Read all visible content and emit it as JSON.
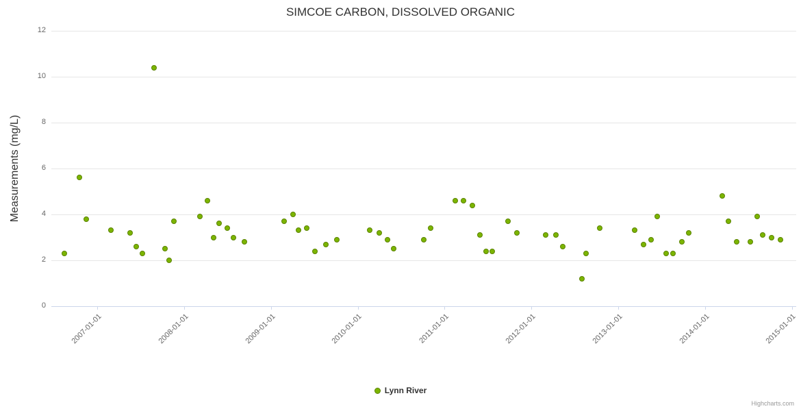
{
  "chart_data": {
    "type": "scatter",
    "title": "SIMCOE CARBON, DISSOLVED ORGANIC",
    "xlabel": "",
    "ylabel": "Measurements (mg/L)",
    "ylim": [
      0,
      12
    ],
    "xlim": [
      2006.47,
      2015.05
    ],
    "y_ticks": [
      0,
      2,
      4,
      6,
      8,
      10,
      12
    ],
    "x_ticks": [
      {
        "year": 2007,
        "label": "2007-01-01"
      },
      {
        "year": 2008,
        "label": "2008-01-01"
      },
      {
        "year": 2009,
        "label": "2009-01-01"
      },
      {
        "year": 2010,
        "label": "2010-01-01"
      },
      {
        "year": 2011,
        "label": "2011-01-01"
      },
      {
        "year": 2012,
        "label": "2012-01-01"
      },
      {
        "year": 2013,
        "label": "2013-01-01"
      },
      {
        "year": 2014,
        "label": "2014-01-01"
      },
      {
        "year": 2015,
        "label": "2015-01-01"
      }
    ],
    "grid": "horizontal",
    "legend_position": "bottom",
    "series": [
      {
        "name": "Lynn River",
        "color": "#7cb500",
        "marker_border": "#5a8200",
        "points": [
          [
            2006.62,
            2.3
          ],
          [
            2006.79,
            5.6
          ],
          [
            2006.87,
            3.8
          ],
          [
            2007.16,
            3.3
          ],
          [
            2007.38,
            3.2
          ],
          [
            2007.45,
            2.6
          ],
          [
            2007.52,
            2.3
          ],
          [
            2007.65,
            10.4
          ],
          [
            2007.78,
            2.5
          ],
          [
            2007.83,
            2.0
          ],
          [
            2007.88,
            3.7
          ],
          [
            2008.18,
            3.9
          ],
          [
            2008.27,
            4.6
          ],
          [
            2008.34,
            3.0
          ],
          [
            2008.4,
            3.6
          ],
          [
            2008.5,
            3.4
          ],
          [
            2008.57,
            3.0
          ],
          [
            2008.69,
            2.8
          ],
          [
            2009.15,
            3.7
          ],
          [
            2009.25,
            4.0
          ],
          [
            2009.32,
            3.3
          ],
          [
            2009.41,
            3.4
          ],
          [
            2009.51,
            2.4
          ],
          [
            2009.63,
            2.7
          ],
          [
            2009.76,
            2.9
          ],
          [
            2010.14,
            3.3
          ],
          [
            2010.25,
            3.2
          ],
          [
            2010.34,
            2.9
          ],
          [
            2010.41,
            2.5
          ],
          [
            2010.76,
            2.9
          ],
          [
            2010.84,
            3.4
          ],
          [
            2011.12,
            4.6
          ],
          [
            2011.22,
            4.6
          ],
          [
            2011.32,
            4.4
          ],
          [
            2011.41,
            3.1
          ],
          [
            2011.48,
            2.4
          ],
          [
            2011.55,
            2.4
          ],
          [
            2011.73,
            3.7
          ],
          [
            2011.83,
            3.2
          ],
          [
            2012.16,
            3.1
          ],
          [
            2012.28,
            3.1
          ],
          [
            2012.36,
            2.6
          ],
          [
            2012.58,
            1.2
          ],
          [
            2012.63,
            2.3
          ],
          [
            2012.79,
            3.4
          ],
          [
            2013.19,
            3.3
          ],
          [
            2013.29,
            2.7
          ],
          [
            2013.38,
            2.9
          ],
          [
            2013.45,
            3.9
          ],
          [
            2013.55,
            2.3
          ],
          [
            2013.63,
            2.3
          ],
          [
            2013.73,
            2.8
          ],
          [
            2013.81,
            3.2
          ],
          [
            2014.2,
            4.8
          ],
          [
            2014.27,
            3.7
          ],
          [
            2014.36,
            2.8
          ],
          [
            2014.52,
            2.8
          ],
          [
            2014.6,
            3.9
          ],
          [
            2014.66,
            3.1
          ],
          [
            2014.77,
            3.0
          ],
          [
            2014.87,
            2.9
          ]
        ]
      }
    ]
  },
  "colors": {
    "grid": "#e6e6e6",
    "axis_line": "#ccd6eb",
    "tick_label": "#666666",
    "title": "#333333"
  },
  "credits": "Highcharts.com"
}
